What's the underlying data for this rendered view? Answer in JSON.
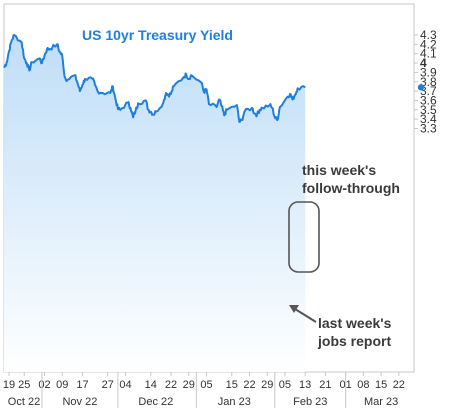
{
  "chart_data": {
    "type": "line",
    "title": "US 10yr Treasury Yield",
    "xlabel": "",
    "ylabel": "",
    "ylim": [
      3.25,
      4.35
    ],
    "grid": false,
    "legend": "none",
    "y_ticks": [
      "4.3",
      "4.2",
      "4.1",
      "4",
      "3.9",
      "3.8",
      "3.7",
      "3.6",
      "3.5",
      "3.4",
      "3.3"
    ],
    "x_day_ticks": [
      "19",
      "25",
      "02",
      "09",
      "17",
      "27",
      "04",
      "14",
      "22",
      "29",
      "05",
      "15",
      "22",
      "29",
      "05",
      "13",
      "21",
      "01",
      "08",
      "15",
      "22"
    ],
    "x_month_labels": [
      "Oct 22",
      "Nov 22",
      "Dec 22",
      "Jan 23",
      "Feb 23",
      "Mar 23"
    ],
    "current_value": 3.74,
    "series": [
      {
        "color": "#1f7fdc",
        "points": [
          [
            "2022-10-17",
            3.95
          ],
          [
            "2022-10-18",
            4.0
          ],
          [
            "2022-10-19",
            4.13
          ],
          [
            "2022-10-20",
            4.24
          ],
          [
            "2022-10-21",
            4.3
          ],
          [
            "2022-10-24",
            4.22
          ],
          [
            "2022-10-25",
            4.05
          ],
          [
            "2022-10-26",
            4.0
          ],
          [
            "2022-10-27",
            3.92
          ],
          [
            "2022-10-28",
            4.01
          ],
          [
            "2022-10-31",
            4.05
          ],
          [
            "2022-11-01",
            4.0
          ],
          [
            "2022-11-02",
            4.08
          ],
          [
            "2022-11-03",
            4.15
          ],
          [
            "2022-11-04",
            4.15
          ],
          [
            "2022-11-07",
            4.2
          ],
          [
            "2022-11-08",
            4.12
          ],
          [
            "2022-11-09",
            4.08
          ],
          [
            "2022-11-10",
            3.85
          ],
          [
            "2022-11-11",
            3.82
          ],
          [
            "2022-11-14",
            3.87
          ],
          [
            "2022-11-15",
            3.79
          ],
          [
            "2022-11-16",
            3.7
          ],
          [
            "2022-11-17",
            3.77
          ],
          [
            "2022-11-18",
            3.83
          ],
          [
            "2022-11-21",
            3.83
          ],
          [
            "2022-11-22",
            3.76
          ],
          [
            "2022-11-23",
            3.7
          ],
          [
            "2022-11-25",
            3.68
          ],
          [
            "2022-11-28",
            3.68
          ],
          [
            "2022-11-29",
            3.75
          ],
          [
            "2022-11-30",
            3.62
          ],
          [
            "2022-12-01",
            3.51
          ],
          [
            "2022-12-02",
            3.5
          ],
          [
            "2022-12-05",
            3.58
          ],
          [
            "2022-12-06",
            3.52
          ],
          [
            "2022-12-07",
            3.42
          ],
          [
            "2022-12-08",
            3.49
          ],
          [
            "2022-12-09",
            3.57
          ],
          [
            "2022-12-12",
            3.6
          ],
          [
            "2022-12-13",
            3.5
          ],
          [
            "2022-12-14",
            3.48
          ],
          [
            "2022-12-15",
            3.45
          ],
          [
            "2022-12-16",
            3.48
          ],
          [
            "2022-12-19",
            3.58
          ],
          [
            "2022-12-20",
            3.68
          ],
          [
            "2022-12-21",
            3.66
          ],
          [
            "2022-12-22",
            3.67
          ],
          [
            "2022-12-23",
            3.75
          ],
          [
            "2022-12-27",
            3.85
          ],
          [
            "2022-12-28",
            3.88
          ],
          [
            "2022-12-29",
            3.83
          ],
          [
            "2022-12-30",
            3.87
          ],
          [
            "2023-01-03",
            3.79
          ],
          [
            "2023-01-04",
            3.69
          ],
          [
            "2023-01-05",
            3.72
          ],
          [
            "2023-01-06",
            3.56
          ],
          [
            "2023-01-09",
            3.53
          ],
          [
            "2023-01-10",
            3.61
          ],
          [
            "2023-01-11",
            3.54
          ],
          [
            "2023-01-12",
            3.44
          ],
          [
            "2023-01-13",
            3.5
          ],
          [
            "2023-01-17",
            3.55
          ],
          [
            "2023-01-18",
            3.37
          ],
          [
            "2023-01-19",
            3.39
          ],
          [
            "2023-01-20",
            3.48
          ],
          [
            "2023-01-23",
            3.52
          ],
          [
            "2023-01-24",
            3.46
          ],
          [
            "2023-01-25",
            3.45
          ],
          [
            "2023-01-26",
            3.5
          ],
          [
            "2023-01-27",
            3.52
          ],
          [
            "2023-01-30",
            3.55
          ],
          [
            "2023-01-31",
            3.52
          ],
          [
            "2023-02-01",
            3.42
          ],
          [
            "2023-02-02",
            3.39
          ],
          [
            "2023-02-03",
            3.53
          ],
          [
            "2023-02-06",
            3.64
          ],
          [
            "2023-02-07",
            3.67
          ],
          [
            "2023-02-08",
            3.61
          ],
          [
            "2023-02-09",
            3.66
          ],
          [
            "2023-02-10",
            3.73
          ],
          [
            "2023-02-13",
            3.74
          ]
        ]
      }
    ],
    "annotations": [
      {
        "lines": [
          "this week's",
          "follow-through"
        ]
      },
      {
        "lines": [
          "last week's",
          "jobs report"
        ]
      }
    ]
  }
}
